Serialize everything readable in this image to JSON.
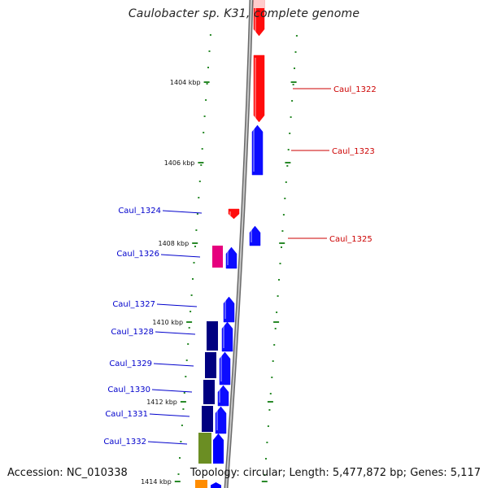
{
  "title": "Caulobacter sp. K31, complete genome",
  "ruler": {
    "labels": [
      "1404 kbp",
      "1406 kbp",
      "1408 kbp",
      "1410 kbp",
      "1412 kbp",
      "1414 kbp"
    ]
  },
  "genes": [
    {
      "name": "Caul_1322",
      "strand": "+",
      "color": "#ff0000"
    },
    {
      "name": "Caul_1323",
      "strand": "+",
      "color": "#ff0000"
    },
    {
      "name": "Caul_1324",
      "strand": "-",
      "color": "#0000ff"
    },
    {
      "name": "Caul_1325",
      "strand": "+",
      "color": "#ff0000"
    },
    {
      "name": "Caul_1326",
      "strand": "-",
      "color": "#0000ff"
    },
    {
      "name": "Caul_1327",
      "strand": "-",
      "color": "#0000ff"
    },
    {
      "name": "Caul_1328",
      "strand": "-",
      "color": "#0000ff"
    },
    {
      "name": "Caul_1329",
      "strand": "-",
      "color": "#0000ff"
    },
    {
      "name": "Caul_1330",
      "strand": "-",
      "color": "#0000ff"
    },
    {
      "name": "Caul_1331",
      "strand": "-",
      "color": "#0000ff"
    },
    {
      "name": "Caul_1332",
      "strand": "-",
      "color": "#0000ff"
    }
  ],
  "colors": {
    "forward_gene": "#ff0000",
    "reverse_gene": "#0000ff",
    "forward_label": "#cc0000",
    "reverse_label": "#0000cc",
    "backbone": "#8c8c8c",
    "ticks": "#2a8a2a",
    "cog_navy": "#000080",
    "cog_magenta": "#e6007e",
    "cog_olive": "#6b8e23",
    "cog_orange": "#ff8c00"
  },
  "footer": {
    "accession": "Accession: NC_010338",
    "topology": "Topology: circular;",
    "length": "Length: 5,477,872 bp;",
    "genes": "Genes: 5,117"
  }
}
